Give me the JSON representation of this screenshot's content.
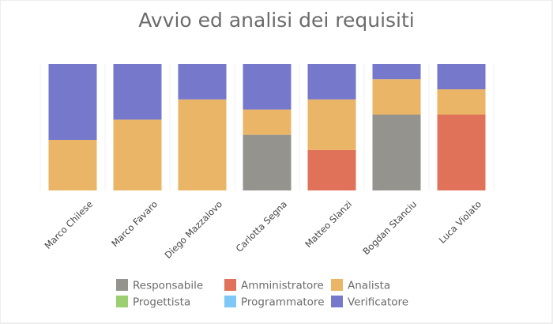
{
  "chart_data": {
    "type": "bar",
    "stacked": "percent",
    "title": "Avvio ed analisi dei requisiti",
    "xlabel": "",
    "ylabel": "",
    "ylim": [
      0,
      100
    ],
    "grid": "vertical",
    "legend": "bottom",
    "categories": [
      "Marco Chilese",
      "Marco Favaro",
      "Diego Mazzalovo",
      "Carlotta Segna",
      "Matteo Slanzi",
      "Bogdan Stanciu",
      "Luca Violato"
    ],
    "series": [
      {
        "name": "Responsabile",
        "color": "#95938d",
        "values": [
          0,
          0,
          0,
          44,
          0,
          60,
          0
        ]
      },
      {
        "name": "Amministratore",
        "color": "#e07259",
        "values": [
          0,
          0,
          0,
          0,
          32,
          0,
          60
        ]
      },
      {
        "name": "Analista",
        "color": "#eab566",
        "values": [
          40,
          56,
          72,
          20,
          40,
          28,
          20
        ]
      },
      {
        "name": "Progettista",
        "color": "#9ccf6f",
        "values": [
          0,
          0,
          0,
          0,
          0,
          0,
          0
        ]
      },
      {
        "name": "Programmatore",
        "color": "#7dc8f5",
        "values": [
          0,
          0,
          0,
          0,
          0,
          0,
          0
        ]
      },
      {
        "name": "Verificatore",
        "color": "#7678cc",
        "values": [
          60,
          44,
          28,
          36,
          28,
          12,
          20
        ]
      }
    ]
  }
}
